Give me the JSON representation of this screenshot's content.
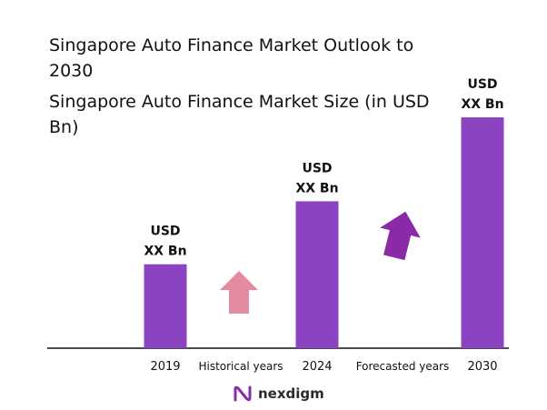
{
  "chart_data": {
    "type": "bar",
    "title": "Singapore Auto Finance Market Outlook to 2030",
    "subtitle": "Singapore Auto Finance Market Size (in USD Bn)",
    "categories": [
      "2019",
      "2024",
      "2030"
    ],
    "values": [
      1.0,
      1.75,
      2.75
    ],
    "data_labels": [
      {
        "line1": "USD",
        "line2": "XX Bn"
      },
      {
        "line1": "USD",
        "line2": "XX Bn"
      },
      {
        "line1": "USD",
        "line2": "XX Bn"
      }
    ],
    "period_labels": [
      "Historical years",
      "Forecasted years"
    ],
    "ylim": [
      0,
      3
    ],
    "bar_color": "#8b43c1",
    "arrow_colors": {
      "historical": "#e48aa0",
      "forecast": "#8a2aa8"
    },
    "grid": false,
    "legend": "none"
  },
  "brand": {
    "name": "nexdigm",
    "logo_icon": "nexdigm-logo-icon",
    "logo_color": "#8a2aa8"
  }
}
